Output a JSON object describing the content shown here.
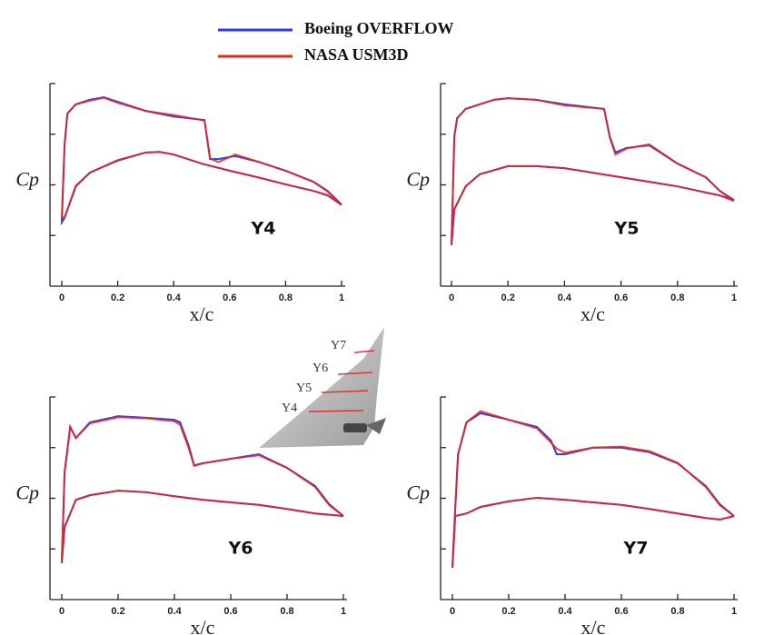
{
  "chart_data": [
    {
      "type": "line",
      "title": "Y4",
      "xlabel": "x/c",
      "ylabel": "Cp",
      "x": [
        1,
        0.95,
        0.9,
        0.8,
        0.7,
        0.62,
        0.56,
        0.53,
        0.51,
        0.4,
        0.3,
        0.2,
        0.15,
        0.1,
        0.05,
        0.02,
        0.01,
        0,
        0.01,
        0.05,
        0.1,
        0.2,
        0.3,
        0.35,
        0.4,
        0.5,
        0.6,
        0.7,
        0.8,
        0.9,
        0.95,
        1
      ],
      "series": [
        {
          "name": "Boeing OVERFLOW",
          "color": "#2b3cf0",
          "values": [
            1.61,
            1.88,
            2.06,
            2.28,
            2.46,
            2.57,
            2.51,
            2.51,
            3.28,
            3.35,
            3.46,
            3.64,
            3.73,
            3.68,
            3.59,
            3.41,
            2.78,
            1.26,
            1.35,
            1.97,
            2.24,
            2.48,
            2.64,
            2.65,
            2.6,
            2.42,
            2.28,
            2.15,
            2.01,
            1.88,
            1.79,
            1.61
          ]
        },
        {
          "name": "NASA USM3D",
          "color": "#e8261c",
          "values": [
            1.6,
            1.87,
            2.06,
            2.28,
            2.46,
            2.6,
            2.45,
            2.52,
            3.27,
            3.38,
            3.46,
            3.62,
            3.72,
            3.66,
            3.59,
            3.41,
            2.8,
            1.35,
            1.36,
            1.98,
            2.24,
            2.49,
            2.64,
            2.65,
            2.6,
            2.42,
            2.28,
            2.15,
            2.01,
            1.88,
            1.8,
            1.6
          ]
        }
      ],
      "xlim": [
        0,
        1
      ],
      "xticks": [
        0,
        0.2,
        0.4,
        0.6,
        0.8,
        1
      ],
      "ylim": [
        0,
        4
      ],
      "yticks": [
        1,
        2,
        3,
        4
      ]
    },
    {
      "type": "line",
      "title": "Y5",
      "xlabel": "x/c",
      "ylabel": "Cp",
      "x": [
        1,
        0.95,
        0.9,
        0.8,
        0.7,
        0.62,
        0.58,
        0.56,
        0.54,
        0.4,
        0.3,
        0.2,
        0.15,
        0.1,
        0.05,
        0.02,
        0.01,
        0,
        0.01,
        0.05,
        0.1,
        0.2,
        0.3,
        0.4,
        0.5,
        0.6,
        0.7,
        0.8,
        0.9,
        0.95,
        1
      ],
      "series": [
        {
          "color": "#2b3cf0",
          "values": [
            1.7,
            1.88,
            2.15,
            2.42,
            2.78,
            2.73,
            2.64,
            2.96,
            3.5,
            3.59,
            3.68,
            3.71,
            3.68,
            3.59,
            3.5,
            3.32,
            2.96,
            0.81,
            1.52,
            1.97,
            2.21,
            2.37,
            2.37,
            2.33,
            2.24,
            2.15,
            2.06,
            1.97,
            1.85,
            1.79,
            1.7
          ]
        },
        {
          "color": "#e8261c",
          "values": [
            1.68,
            1.88,
            2.15,
            2.42,
            2.8,
            2.72,
            2.6,
            2.94,
            3.5,
            3.57,
            3.68,
            3.71,
            3.68,
            3.59,
            3.5,
            3.32,
            2.96,
            0.83,
            1.52,
            1.97,
            2.21,
            2.37,
            2.37,
            2.33,
            2.24,
            2.15,
            2.06,
            1.97,
            1.85,
            1.79,
            1.68
          ]
        }
      ],
      "xlim": [
        0,
        1
      ],
      "xticks": [
        0,
        0.2,
        0.4,
        0.6,
        0.8,
        1
      ],
      "ylim": [
        0,
        4
      ],
      "yticks": [
        1,
        2,
        3,
        4
      ]
    },
    {
      "type": "line",
      "title": "Y6",
      "xlabel": "x/c",
      "ylabel": "Cp",
      "x": [
        1,
        0.95,
        0.9,
        0.8,
        0.7,
        0.6,
        0.5,
        0.47,
        0.45,
        0.42,
        0.4,
        0.3,
        0.2,
        0.1,
        0.05,
        0.03,
        0.01,
        0,
        0.01,
        0.05,
        0.1,
        0.2,
        0.3,
        0.4,
        0.5,
        0.6,
        0.7,
        0.8,
        0.9,
        1
      ],
      "series": [
        {
          "color": "#2b3cf0",
          "values": [
            1.65,
            1.88,
            2.24,
            2.6,
            2.87,
            2.78,
            2.69,
            2.65,
            3.05,
            3.5,
            3.55,
            3.59,
            3.62,
            3.5,
            3.19,
            3.41,
            2.51,
            0.72,
            1.43,
            1.97,
            2.06,
            2.15,
            2.12,
            2.04,
            1.97,
            1.92,
            1.87,
            1.79,
            1.7,
            1.65
          ]
        },
        {
          "color": "#e8261c",
          "values": [
            1.65,
            1.86,
            2.22,
            2.6,
            2.85,
            2.78,
            2.69,
            2.64,
            3.0,
            3.45,
            3.52,
            3.58,
            3.6,
            3.48,
            3.19,
            3.41,
            2.51,
            0.75,
            1.43,
            1.97,
            2.06,
            2.15,
            2.12,
            2.04,
            1.97,
            1.92,
            1.87,
            1.79,
            1.7,
            1.65
          ]
        }
      ],
      "xlim": [
        0,
        1
      ],
      "xticks": [
        0,
        0.2,
        0.4,
        0.6,
        0.8,
        1
      ],
      "ylim": [
        0,
        4
      ],
      "yticks": [
        1,
        2,
        3,
        4
      ]
    },
    {
      "type": "line",
      "title": "Y7",
      "xlabel": "x/c",
      "ylabel": "Cp",
      "x": [
        1,
        0.95,
        0.9,
        0.8,
        0.7,
        0.6,
        0.5,
        0.4,
        0.37,
        0.35,
        0.3,
        0.2,
        0.1,
        0.05,
        0.02,
        0.01,
        0,
        0.01,
        0.05,
        0.1,
        0.2,
        0.3,
        0.4,
        0.5,
        0.6,
        0.7,
        0.8,
        0.9,
        0.95,
        1
      ],
      "series": [
        {
          "color": "#2b3cf0",
          "values": [
            1.65,
            1.88,
            2.24,
            2.69,
            2.91,
            3.0,
            3.0,
            2.87,
            2.87,
            3.14,
            3.41,
            3.55,
            3.68,
            3.5,
            2.87,
            1.79,
            0.63,
            1.65,
            1.7,
            1.83,
            1.94,
            2.01,
            1.97,
            1.92,
            1.87,
            1.79,
            1.7,
            1.61,
            1.58,
            1.65
          ]
        },
        {
          "color": "#e8261c",
          "values": [
            1.65,
            1.86,
            2.22,
            2.7,
            2.93,
            3.02,
            3.0,
            2.9,
            2.98,
            3.1,
            3.38,
            3.55,
            3.72,
            3.5,
            2.87,
            1.79,
            0.65,
            1.65,
            1.7,
            1.83,
            1.94,
            2.01,
            1.97,
            1.92,
            1.87,
            1.79,
            1.7,
            1.61,
            1.58,
            1.65
          ]
        }
      ],
      "xlim": [
        0,
        1
      ],
      "xticks": [
        0,
        0.2,
        0.4,
        0.6,
        0.8,
        1
      ],
      "ylim": [
        0,
        4
      ],
      "yticks": [
        1,
        2,
        3,
        4
      ]
    }
  ],
  "inset_labels": [
    "Y7",
    "Y6",
    "Y5",
    "Y4"
  ]
}
